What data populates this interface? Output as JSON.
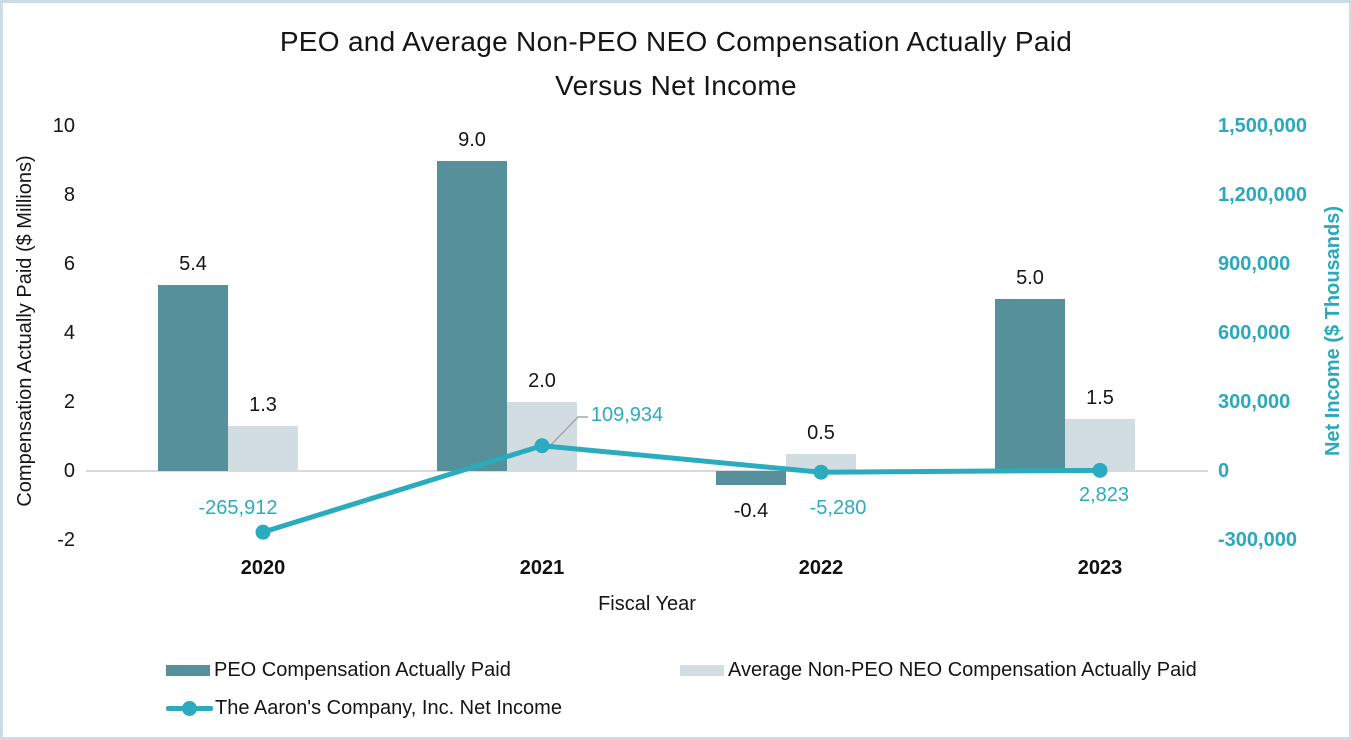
{
  "title": {
    "line1": "PEO and Average Non-PEO NEO Compensation Actually Paid",
    "line2": "Versus Net Income"
  },
  "colors": {
    "peo_bar": "#55909B",
    "nonpeo_bar": "#D2DDE2",
    "net_income_line": "#2BACBE",
    "right_axis_text": "#2BA9BC",
    "gridline": "#D9D9D9",
    "leader_line": "#A6A6A6",
    "border": "#CCDCE3"
  },
  "chart_data": {
    "type": "combo",
    "categories": [
      "2020",
      "2021",
      "2022",
      "2023"
    ],
    "x_axis": {
      "title": "Fiscal Year"
    },
    "left_axis": {
      "title": "Compensation Actually Paid ($ Millions)",
      "ticks": [
        10,
        8,
        6,
        4,
        2,
        0,
        -2
      ],
      "tick_labels": [
        "10",
        "8",
        "6",
        "4",
        "2",
        "0",
        "-2"
      ],
      "range": [
        -2,
        10
      ],
      "grid": "zero-line-only"
    },
    "right_axis": {
      "title": "Net Income ($ Thousands)",
      "ticks": [
        1500000,
        1200000,
        900000,
        600000,
        300000,
        0,
        -300000
      ],
      "tick_labels": [
        "1,500,000",
        "1,200,000",
        "900,000",
        "600,000",
        "300,000",
        "0",
        "-300,000"
      ],
      "range": [
        -300000,
        1500000
      ]
    },
    "series": [
      {
        "name": "PEO Compensation Actually Paid",
        "type": "bar",
        "axis": "left",
        "values": [
          5.4,
          9.0,
          -0.4,
          5.0
        ],
        "labels": [
          "5.4",
          "9.0",
          "-0.4",
          "5.0"
        ],
        "color": "#55909B"
      },
      {
        "name": "Average Non-PEO NEO Compensation Actually Paid",
        "type": "bar",
        "axis": "left",
        "values": [
          1.3,
          2.0,
          0.5,
          1.5
        ],
        "labels": [
          "1.3",
          "2.0",
          "0.5",
          "1.5"
        ],
        "color": "#D2DDE2"
      },
      {
        "name": "The Aaron's Company, Inc. Net Income",
        "type": "line",
        "axis": "right",
        "values": [
          -265912,
          109934,
          -5280,
          2823
        ],
        "labels": [
          "-265,912",
          "109,934",
          "-5,280",
          "2,823"
        ],
        "color": "#2BACBE"
      }
    ],
    "legend_position": "bottom"
  }
}
